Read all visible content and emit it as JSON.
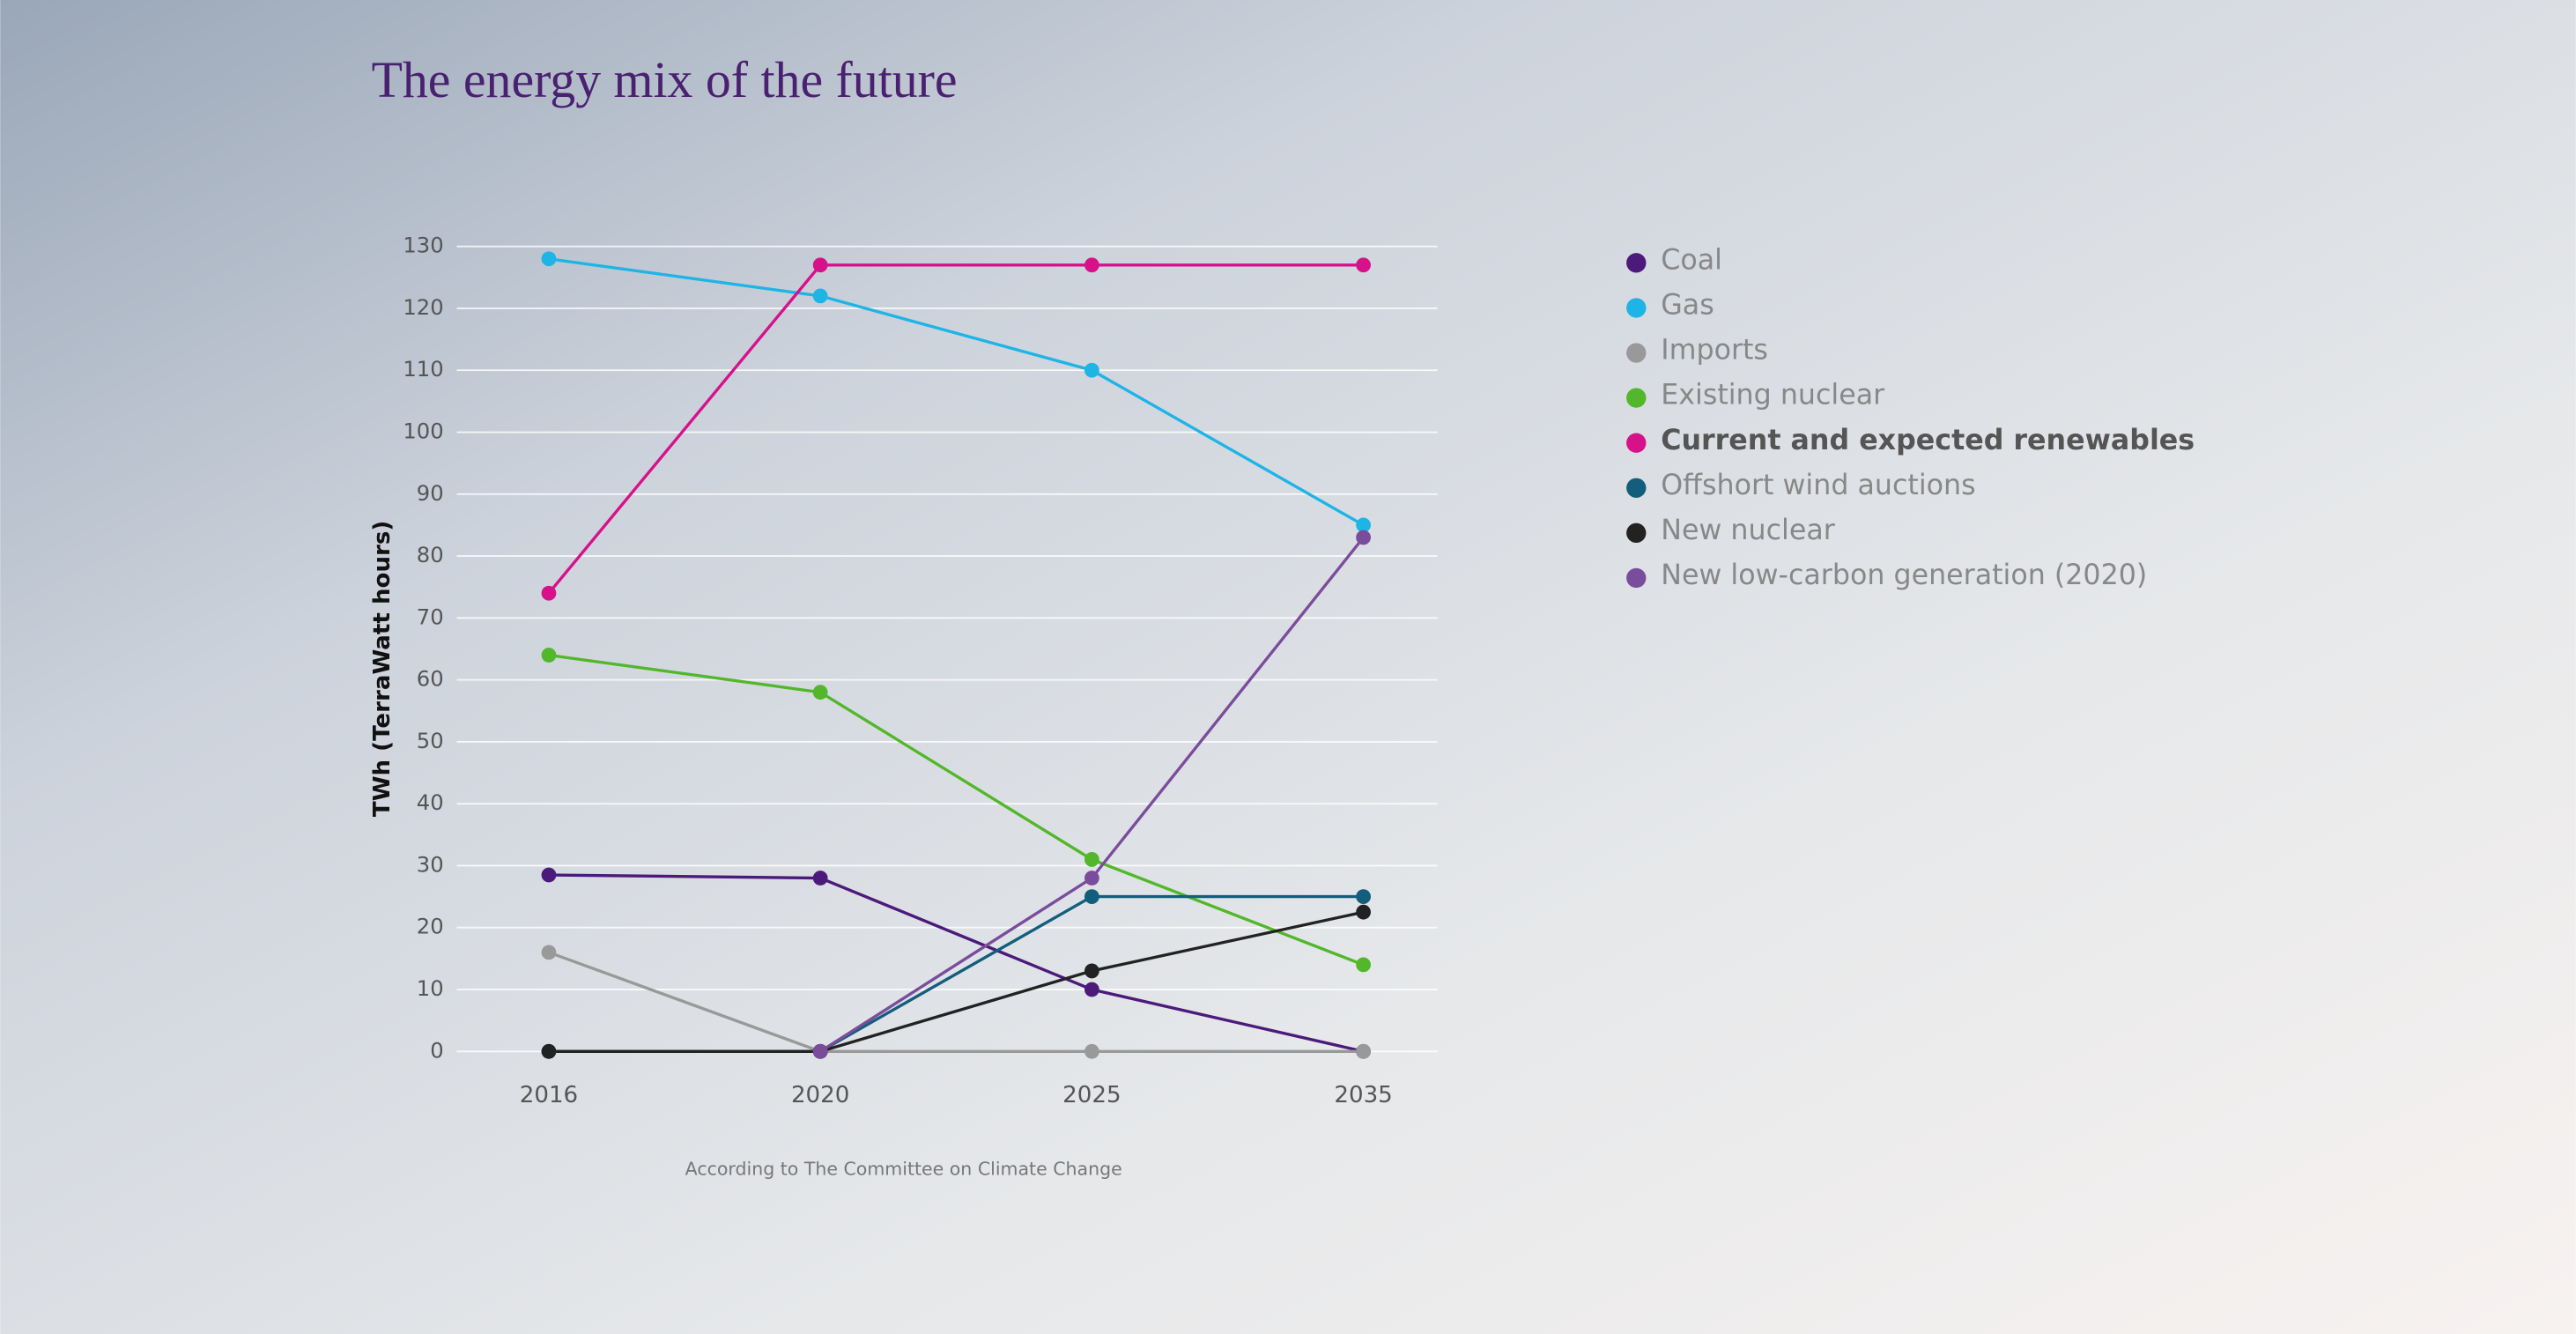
{
  "chart_data": {
    "type": "line",
    "title": "The energy mix of the future",
    "y_label": "TWh (TerraWatt hours)",
    "source": "According to The Committee on Climate Change",
    "categories": [
      "2016",
      "2020",
      "2025",
      "2035"
    ],
    "series": [
      {
        "name": "Coal",
        "color": "#4b1a7a",
        "values": [
          28.5,
          28,
          10,
          0
        ]
      },
      {
        "name": "Gas",
        "color": "#1eb4e6",
        "values": [
          128,
          122,
          110,
          85
        ]
      },
      {
        "name": "Imports",
        "color": "#999999",
        "values": [
          16,
          0,
          0,
          0
        ]
      },
      {
        "name": "Existing nuclear",
        "color": "#52b72a",
        "values": [
          64,
          58,
          31,
          14
        ]
      },
      {
        "name": "Current and expected renewables",
        "color": "#d6118a",
        "values": [
          74,
          127,
          127,
          127
        ]
      },
      {
        "name": "Offshort wind auctions",
        "color": "#125e7c",
        "values": [
          0,
          0,
          25,
          25
        ]
      },
      {
        "name": "New nuclear",
        "color": "#222222",
        "values": [
          0,
          0,
          13,
          22.5
        ]
      },
      {
        "name": "New low-carbon generation (2020)",
        "color": "#7a4c9c",
        "values": [
          null,
          0,
          28,
          83
        ]
      }
    ],
    "highlight_series": 4,
    "ylim": [
      0,
      130
    ],
    "yticks": [
      0,
      10,
      20,
      30,
      40,
      50,
      60,
      70,
      80,
      90,
      100,
      110,
      120,
      130
    ],
    "grid": true
  }
}
